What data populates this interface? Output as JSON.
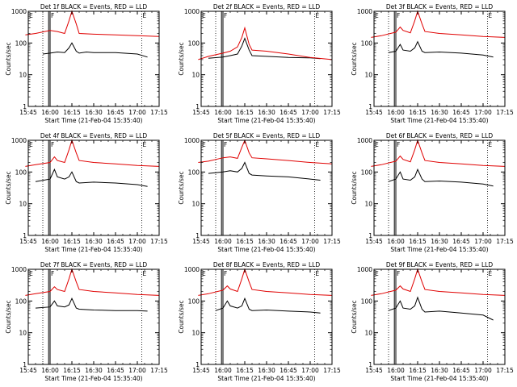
{
  "chart_data": {
    "type": "line",
    "x_ticks": [
      "15:45",
      "16:00",
      "16:15",
      "16:30",
      "16:45",
      "17:00",
      "17:15"
    ],
    "y_scale": "log",
    "y_ticks": [
      "1",
      "10",
      "100",
      "1000"
    ],
    "ylim": [
      1,
      1000
    ],
    "xlabel": "Start Time (21-Feb-04 15:35:40)",
    "ylabel": "Counts/sec",
    "colors": {
      "black_series": "#000000",
      "red_series": "#e00000",
      "markers": "#000000"
    },
    "panels": [
      {
        "title": "Det 1f BLACK = Events, RED = LLD",
        "corner_labels": [
          "E",
          "F",
          "E"
        ],
        "series": [
          {
            "color": "black",
            "x": [
              "15:55",
              "16:00",
              "16:05",
              "16:10",
              "16:13",
              "16:15",
              "16:18",
              "16:20",
              "16:25",
              "16:30",
              "16:45",
              "17:00",
              "17:07"
            ],
            "values": [
              45,
              48,
              52,
              50,
              70,
              100,
              55,
              48,
              52,
              50,
              50,
              45,
              36
            ]
          },
          {
            "color": "red",
            "x": [
              "15:43",
              "15:50",
              "16:00",
              "16:05",
              "16:10",
              "16:13",
              "16:15",
              "16:18",
              "16:20",
              "16:30",
              "16:45",
              "17:00",
              "17:15"
            ],
            "values": [
              180,
              200,
              250,
              230,
              200,
              500,
              1000,
              400,
              200,
              190,
              180,
              170,
              160
            ]
          }
        ]
      },
      {
        "title": "Det 2f BLACK = Events, RED = LLD",
        "corner_labels": [
          "E",
          "F",
          "E"
        ],
        "series": [
          {
            "color": "black",
            "x": [
              "15:50",
              "16:00",
              "16:05",
              "16:10",
              "16:13",
              "16:15",
              "16:18",
              "16:20",
              "16:30",
              "16:45",
              "17:00",
              "17:07"
            ],
            "values": [
              33,
              36,
              40,
              45,
              80,
              140,
              60,
              40,
              38,
              35,
              34,
              32
            ]
          },
          {
            "color": "red",
            "x": [
              "15:43",
              "15:50",
              "16:00",
              "16:05",
              "16:10",
              "16:13",
              "16:15",
              "16:18",
              "16:20",
              "16:30",
              "16:45",
              "17:00",
              "17:15"
            ],
            "values": [
              30,
              38,
              48,
              55,
              75,
              150,
              300,
              90,
              60,
              55,
              45,
              35,
              30
            ]
          }
        ]
      },
      {
        "title": "Det 3f BLACK = Events, RED = LLD",
        "corner_labels": [
          "E",
          "F",
          "E"
        ],
        "series": [
          {
            "color": "black",
            "x": [
              "15:55",
              "16:00",
              "16:03",
              "16:05",
              "16:10",
              "16:13",
              "16:15",
              "16:18",
              "16:20",
              "16:30",
              "16:45",
              "17:00",
              "17:07"
            ],
            "values": [
              50,
              55,
              90,
              60,
              55,
              70,
              110,
              55,
              50,
              52,
              48,
              42,
              36
            ]
          },
          {
            "color": "red",
            "x": [
              "15:43",
              "15:50",
              "16:00",
              "16:03",
              "16:05",
              "16:10",
              "16:13",
              "16:15",
              "16:18",
              "16:20",
              "16:30",
              "16:45",
              "17:00",
              "17:15"
            ],
            "values": [
              150,
              170,
              220,
              320,
              250,
              210,
              500,
              1000,
              400,
              230,
              200,
              180,
              160,
              150
            ]
          }
        ]
      },
      {
        "title": "Det 4f BLACK = Events, RED = LLD",
        "corner_labels": [
          "E",
          "F",
          "E"
        ],
        "series": [
          {
            "color": "black",
            "x": [
              "15:50",
              "16:00",
              "16:03",
              "16:05",
              "16:10",
              "16:13",
              "16:15",
              "16:18",
              "16:20",
              "16:30",
              "16:45",
              "17:00",
              "17:07"
            ],
            "values": [
              50,
              60,
              120,
              70,
              60,
              70,
              100,
              50,
              45,
              48,
              45,
              40,
              35
            ]
          },
          {
            "color": "red",
            "x": [
              "15:43",
              "15:50",
              "16:00",
              "16:03",
              "16:05",
              "16:10",
              "16:13",
              "16:15",
              "16:18",
              "16:20",
              "16:30",
              "16:45",
              "17:00",
              "17:15"
            ],
            "values": [
              150,
              170,
              200,
              300,
              230,
              200,
              500,
              1000,
              400,
              230,
              200,
              180,
              160,
              150
            ]
          }
        ]
      },
      {
        "title": "Det 5f BLACK = Events, RED = LLD",
        "corner_labels": [
          "E",
          "F",
          "E"
        ],
        "series": [
          {
            "color": "black",
            "x": [
              "15:50",
              "16:00",
              "16:05",
              "16:10",
              "16:13",
              "16:15",
              "16:18",
              "16:20",
              "16:30",
              "16:45",
              "17:00",
              "17:07"
            ],
            "values": [
              90,
              100,
              110,
              100,
              130,
              200,
              90,
              80,
              75,
              70,
              60,
              55
            ]
          },
          {
            "color": "red",
            "x": [
              "15:43",
              "15:50",
              "16:00",
              "16:05",
              "16:10",
              "16:13",
              "16:15",
              "16:18",
              "16:20",
              "16:30",
              "16:45",
              "17:00",
              "17:15"
            ],
            "values": [
              200,
              220,
              280,
              300,
              270,
              600,
              1000,
              400,
              280,
              260,
              230,
              200,
              180
            ]
          }
        ]
      },
      {
        "title": "Det 6f BLACK = Events, RED = LLD",
        "corner_labels": [
          "E",
          "F",
          "E"
        ],
        "series": [
          {
            "color": "black",
            "x": [
              "15:55",
              "16:00",
              "16:03",
              "16:05",
              "16:10",
              "16:13",
              "16:15",
              "16:18",
              "16:20",
              "16:30",
              "16:45",
              "17:00",
              "17:07"
            ],
            "values": [
              50,
              60,
              100,
              60,
              55,
              70,
              120,
              60,
              50,
              52,
              48,
              42,
              36
            ]
          },
          {
            "color": "red",
            "x": [
              "15:43",
              "15:50",
              "16:00",
              "16:03",
              "16:05",
              "16:10",
              "16:13",
              "16:15",
              "16:18",
              "16:20",
              "16:30",
              "16:45",
              "17:00",
              "17:15"
            ],
            "values": [
              150,
              170,
              220,
              320,
              250,
              210,
              500,
              1000,
              400,
              230,
              200,
              180,
              160,
              150
            ]
          }
        ]
      },
      {
        "title": "Det 7f BLACK = Events, RED = LLD",
        "corner_labels": [
          "E",
          "F",
          "E"
        ],
        "series": [
          {
            "color": "black",
            "x": [
              "15:50",
              "16:00",
              "16:03",
              "16:05",
              "16:10",
              "16:13",
              "16:15",
              "16:18",
              "16:20",
              "16:30",
              "16:45",
              "17:00",
              "17:07"
            ],
            "values": [
              60,
              65,
              100,
              70,
              65,
              75,
              120,
              60,
              55,
              52,
              50,
              50,
              48
            ]
          },
          {
            "color": "red",
            "x": [
              "15:43",
              "15:50",
              "16:00",
              "16:03",
              "16:05",
              "16:10",
              "16:13",
              "16:15",
              "16:18",
              "16:20",
              "16:30",
              "16:45",
              "17:00",
              "17:15"
            ],
            "values": [
              150,
              170,
              200,
              280,
              230,
              200,
              500,
              1000,
              400,
              230,
              200,
              180,
              160,
              150
            ]
          }
        ]
      },
      {
        "title": "Det 8f BLACK = Events, RED = LLD",
        "corner_labels": [
          "E",
          "F",
          "E"
        ],
        "series": [
          {
            "color": "black",
            "x": [
              "15:55",
              "16:00",
              "16:03",
              "16:05",
              "16:10",
              "16:13",
              "16:15",
              "16:18",
              "16:20",
              "16:30",
              "16:45",
              "17:00",
              "17:07"
            ],
            "values": [
              50,
              60,
              100,
              70,
              60,
              70,
              120,
              55,
              50,
              52,
              48,
              45,
              42
            ]
          },
          {
            "color": "red",
            "x": [
              "15:43",
              "15:50",
              "16:00",
              "16:03",
              "16:05",
              "16:10",
              "16:13",
              "16:15",
              "16:18",
              "16:20",
              "16:30",
              "16:45",
              "17:00",
              "17:15"
            ],
            "values": [
              150,
              170,
              220,
              300,
              240,
              200,
              500,
              1000,
              400,
              230,
              200,
              180,
              160,
              150
            ]
          }
        ]
      },
      {
        "title": "Det 9f BLACK = Events, RED = LLD",
        "corner_labels": [
          "E",
          "F",
          "E"
        ],
        "series": [
          {
            "color": "black",
            "x": [
              "15:55",
              "16:00",
              "16:03",
              "16:05",
              "16:10",
              "16:13",
              "16:15",
              "16:18",
              "16:20",
              "16:30",
              "16:45",
              "17:00",
              "17:07"
            ],
            "values": [
              50,
              60,
              100,
              60,
              55,
              70,
              130,
              55,
              45,
              48,
              42,
              36,
              25
            ]
          },
          {
            "color": "red",
            "x": [
              "15:43",
              "15:50",
              "16:00",
              "16:03",
              "16:05",
              "16:10",
              "16:13",
              "16:15",
              "16:18",
              "16:20",
              "16:30",
              "16:45",
              "17:00",
              "17:15"
            ],
            "values": [
              150,
              170,
              220,
              300,
              240,
              200,
              500,
              1000,
              400,
              230,
              200,
              180,
              160,
              150
            ]
          }
        ]
      }
    ],
    "vertical_markers": {
      "dotted": [
        "15:55",
        "17:03"
      ],
      "solid": [
        "15:59",
        "16:00"
      ]
    },
    "grid": false,
    "legend": "none"
  }
}
